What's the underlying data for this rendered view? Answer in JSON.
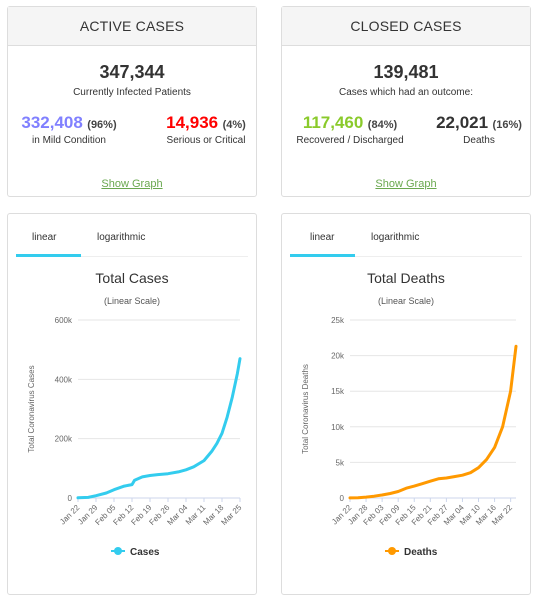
{
  "active": {
    "header": "ACTIVE CASES",
    "total": "347,344",
    "total_label": "Currently Infected Patients",
    "mild_value": "332,408",
    "mild_pct_open": "(",
    "mild_pct": "96%",
    "mild_pct_close": ")",
    "mild_label": "in Mild Condition",
    "serious_value": "14,936",
    "serious_pct_open": "(",
    "serious_pct": "4%",
    "serious_pct_close": ")",
    "serious_label": "Serious or Critical",
    "link": "Show Graph"
  },
  "closed": {
    "header": "CLOSED CASES",
    "total": "139,481",
    "total_label": "Cases which had an outcome:",
    "recovered_value": "117,460",
    "recovered_pct_open": "(",
    "recovered_pct": "84%",
    "recovered_pct_close": ")",
    "recovered_label": "Recovered / Discharged",
    "deaths_value": "22,021",
    "deaths_pct_open": "(",
    "deaths_pct": "16%",
    "deaths_pct_close": ")",
    "deaths_label": "Deaths",
    "link": "Show Graph"
  },
  "colors": {
    "mild": "#8080ff",
    "serious": "#ff0000",
    "recovered": "#8ACA2B",
    "link": "#6aa84f",
    "cases_line": "#33ccee",
    "deaths_line": "#FF9900"
  },
  "tabs": {
    "linear": "linear",
    "log": "logarithmic"
  },
  "chart_data": [
    {
      "type": "line",
      "title": "Total Cases",
      "subtitle": "(Linear Scale)",
      "ylabel": "Total Coronavirus Cases",
      "legend": "Cases",
      "legend_icon": "line-dot-icon",
      "ylim": [
        0,
        600000
      ],
      "yticks": [
        0,
        200000,
        400000,
        600000
      ],
      "ytick_labels": [
        "0",
        "200k",
        "400k",
        "600k"
      ],
      "xtick_labels": [
        "Jan 22",
        "Jan 29",
        "Feb 05",
        "Feb 12",
        "Feb 19",
        "Feb 26",
        "Mar 04",
        "Mar 11",
        "Mar 18",
        "Mar 25"
      ],
      "x": [
        "Jan 22",
        "Jan 26",
        "Jan 29",
        "Feb 02",
        "Feb 05",
        "Feb 09",
        "Feb 12",
        "Feb 13",
        "Feb 16",
        "Feb 19",
        "Feb 22",
        "Feb 26",
        "Mar 01",
        "Mar 04",
        "Mar 07",
        "Mar 11",
        "Mar 14",
        "Mar 16",
        "Mar 18",
        "Mar 20",
        "Mar 22",
        "Mar 24",
        "Mar 25"
      ],
      "values": [
        555,
        2100,
        7700,
        17000,
        28000,
        40000,
        45000,
        60000,
        71000,
        76000,
        79000,
        82000,
        88000,
        95000,
        105000,
        126000,
        157000,
        184000,
        218000,
        272000,
        340000,
        420000,
        470000
      ]
    },
    {
      "type": "line",
      "title": "Total Deaths",
      "subtitle": "(Linear Scale)",
      "ylabel": "Total Coronavirus Deaths",
      "legend": "Deaths",
      "legend_icon": "line-dot-icon",
      "ylim": [
        0,
        25000
      ],
      "yticks": [
        0,
        5000,
        10000,
        15000,
        20000,
        25000
      ],
      "ytick_labels": [
        "0",
        "5k",
        "10k",
        "15k",
        "20k",
        "25k"
      ],
      "xtick_labels": [
        "Jan 22",
        "Jan 28",
        "Feb 03",
        "Feb 09",
        "Feb 15",
        "Feb 21",
        "Feb 27",
        "Mar 04",
        "Mar 10",
        "Mar 16",
        "Mar 22"
      ],
      "x": [
        "Jan 22",
        "Jan 25",
        "Jan 28",
        "Jan 31",
        "Feb 03",
        "Feb 06",
        "Feb 09",
        "Feb 12",
        "Feb 15",
        "Feb 18",
        "Feb 21",
        "Feb 24",
        "Feb 27",
        "Mar 01",
        "Mar 04",
        "Mar 07",
        "Mar 10",
        "Mar 13",
        "Mar 16",
        "Mar 19",
        "Mar 22",
        "Mar 24"
      ],
      "values": [
        17,
        42,
        132,
        259,
        427,
        638,
        908,
        1370,
        1666,
        2006,
        2360,
        2700,
        2810,
        3000,
        3200,
        3550,
        4250,
        5400,
        7100,
        10000,
        15000,
        21300
      ]
    }
  ]
}
